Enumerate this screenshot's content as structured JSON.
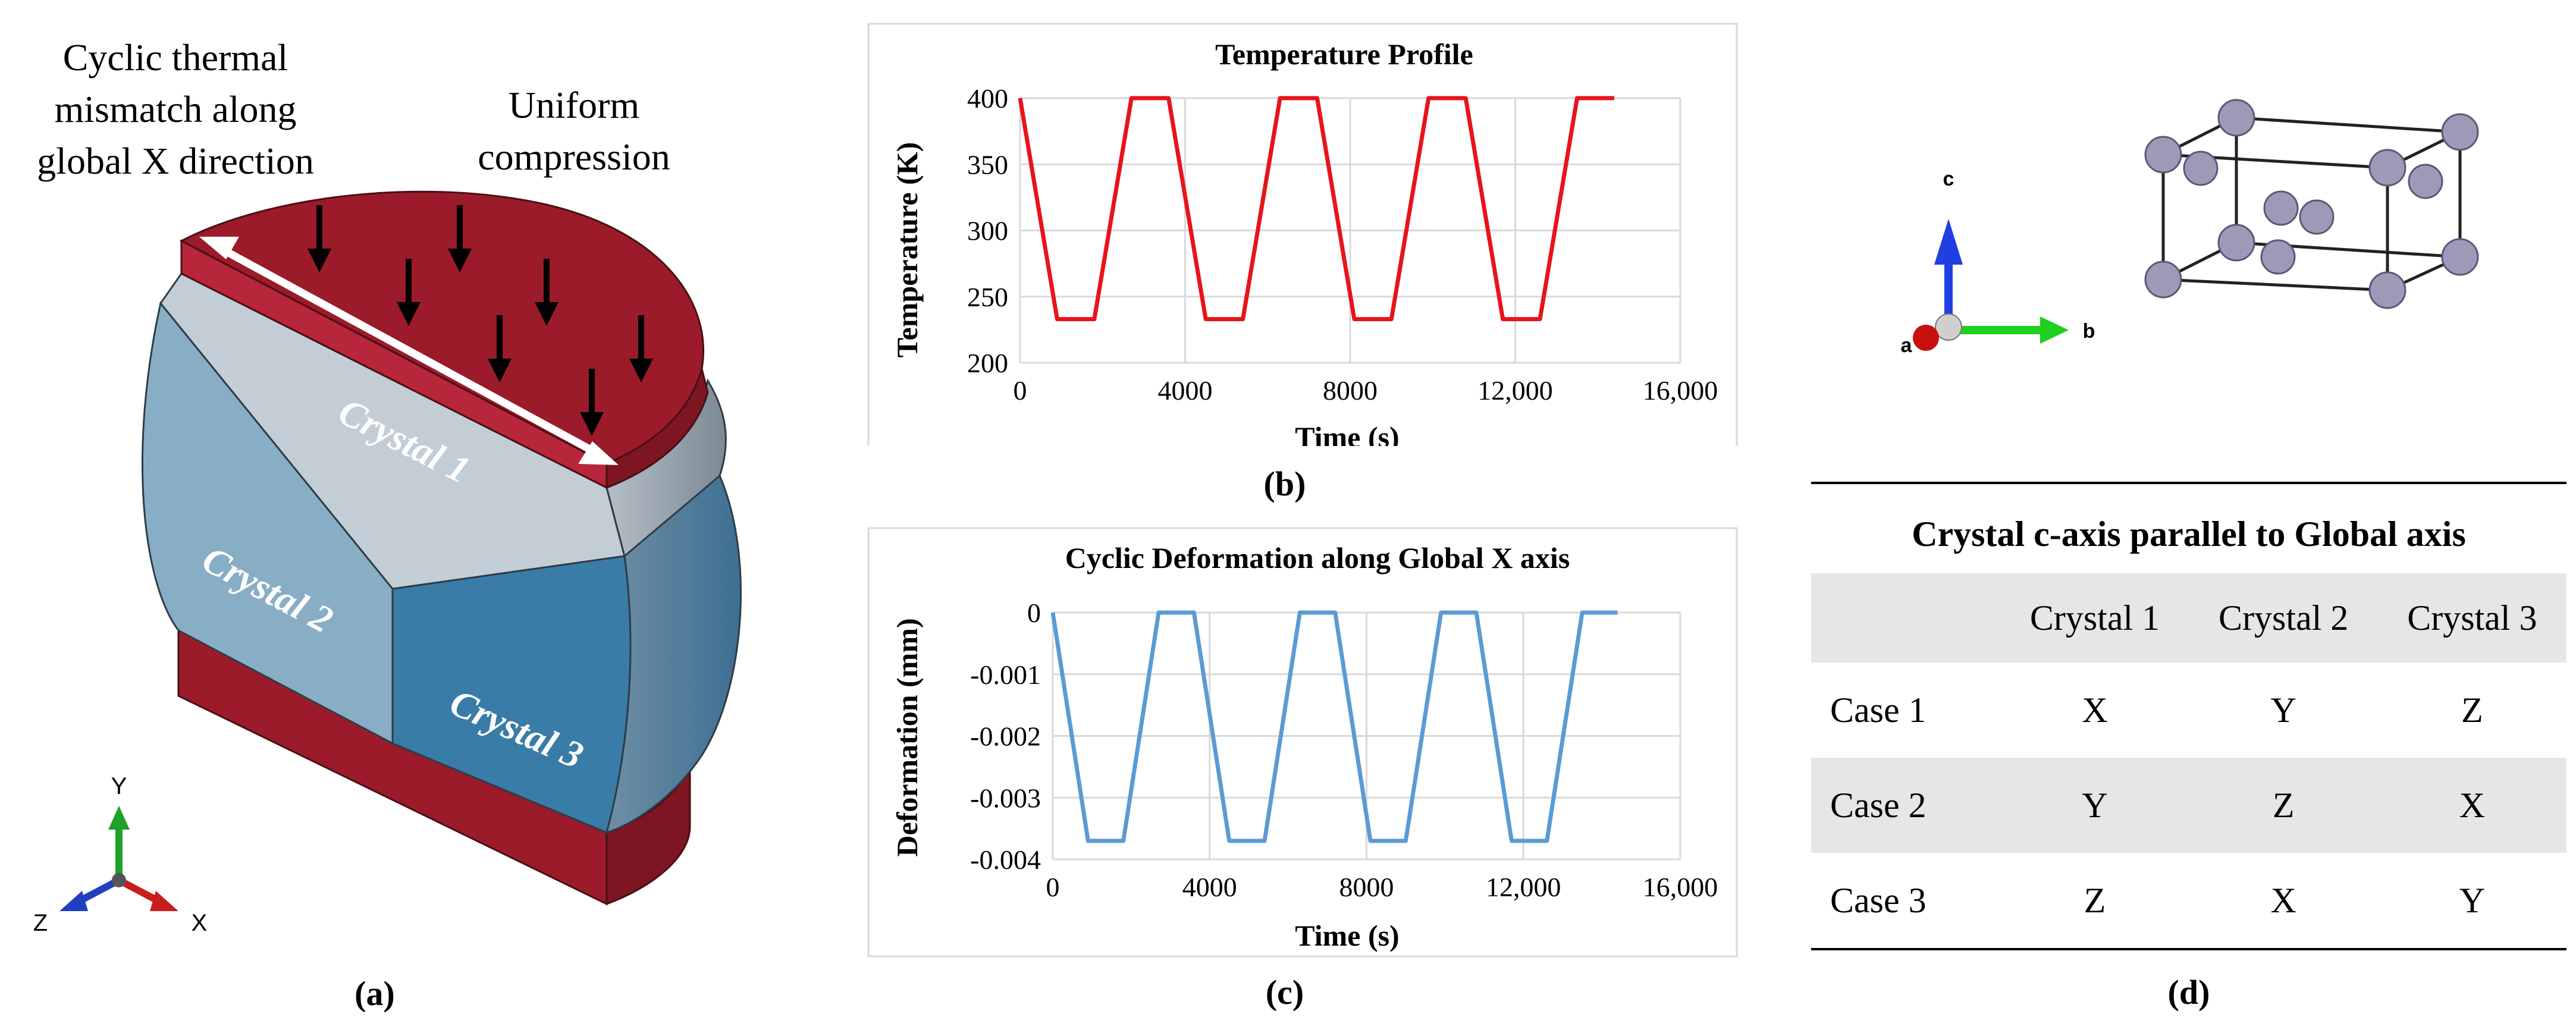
{
  "panel_a": {
    "annotation_mismatch": [
      "Cyclic thermal",
      "mismatch along",
      "global X direction"
    ],
    "annotation_compression": [
      "Uniform",
      "compression"
    ],
    "crystal_labels": [
      "Crystal 1",
      "Crystal 2",
      "Crystal 3"
    ],
    "axes": {
      "y": "Y",
      "x": "X",
      "z": "Z"
    },
    "caption": "(a)",
    "colors": {
      "plate": "#9c1b2b",
      "crystal1": "#c3cdd6",
      "crystal2": "#88aec5",
      "crystal3": "#3a7ca8",
      "arrow": "#ffffff"
    }
  },
  "panel_b": {
    "caption": "(b)",
    "chart_data": {
      "type": "line",
      "title": "Temperature Profile",
      "xlabel": "Time (s)",
      "ylabel": "Temperature (K)",
      "xlim": [
        0,
        16000
      ],
      "ylim": [
        200,
        400
      ],
      "xticks": [
        0,
        4000,
        8000,
        12000,
        16000
      ],
      "xtick_labels": [
        "0",
        "4000",
        "8000",
        "12,000",
        "16,000"
      ],
      "yticks": [
        200,
        250,
        300,
        350,
        400
      ],
      "ytick_labels": [
        "200",
        "250",
        "300",
        "350",
        "400"
      ],
      "color": "#e8141b",
      "x": [
        0,
        900,
        1800,
        2700,
        3600,
        4500,
        5400,
        6300,
        7200,
        8100,
        9000,
        9900,
        10800,
        11700,
        12600,
        13500,
        14400
      ],
      "y": [
        400,
        233,
        233,
        400,
        400,
        233,
        233,
        400,
        400,
        233,
        233,
        400,
        400,
        233,
        233,
        400,
        400
      ]
    }
  },
  "panel_c": {
    "caption": "(c)",
    "chart_data": {
      "type": "line",
      "title": "Cyclic Deformation along Global X axis",
      "xlabel": "Time (s)",
      "ylabel": "Deformation (mm)",
      "xlim": [
        0,
        16000
      ],
      "ylim": [
        -0.004,
        0
      ],
      "xticks": [
        0,
        4000,
        8000,
        12000,
        16000
      ],
      "xtick_labels": [
        "0",
        "4000",
        "8000",
        "12,000",
        "16,000"
      ],
      "yticks": [
        0,
        -0.001,
        -0.002,
        -0.003,
        -0.004
      ],
      "ytick_labels": [
        "0",
        "-0.001",
        "-0.002",
        "-0.003",
        "-0.004"
      ],
      "color": "#5b9bd5",
      "x": [
        0,
        900,
        1800,
        2700,
        3600,
        4500,
        5400,
        6300,
        7200,
        8100,
        9000,
        9900,
        10800,
        11700,
        12600,
        13500,
        14400
      ],
      "y": [
        0,
        -0.0037,
        -0.0037,
        0,
        0,
        -0.0037,
        -0.0037,
        0,
        0,
        -0.0037,
        -0.0037,
        0,
        0,
        -0.0037,
        -0.0037,
        0,
        0
      ]
    }
  },
  "panel_d": {
    "axes": {
      "c": "c",
      "b": "b",
      "a": "a"
    },
    "table_title": "Crystal c-axis parallel to Global axis",
    "headers": [
      "",
      "Crystal 1",
      "Crystal 2",
      "Crystal 3"
    ],
    "rows": [
      [
        "Case 1",
        "X",
        "Y",
        "Z"
      ],
      [
        "Case 2",
        "Y",
        "Z",
        "X"
      ],
      [
        "Case 3",
        "Z",
        "X",
        "Y"
      ]
    ],
    "caption": "(d)",
    "colors": {
      "stripe": "#e6e6e6",
      "atom": "#9d9ab8"
    }
  }
}
